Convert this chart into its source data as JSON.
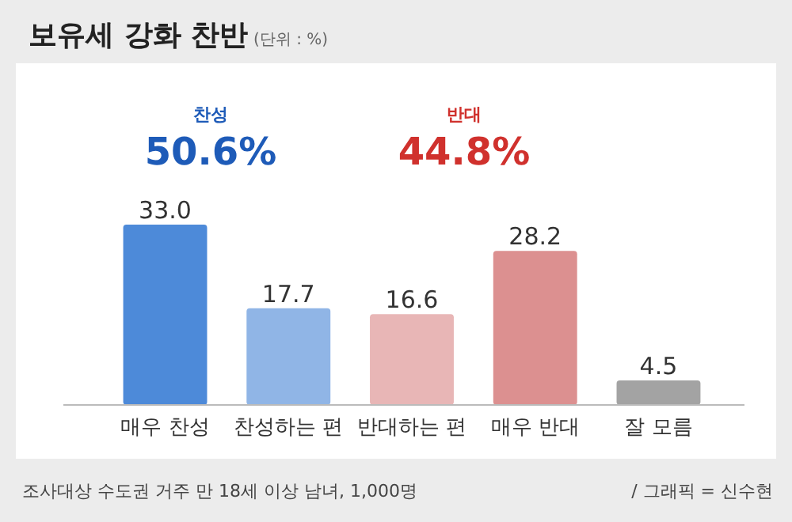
{
  "chart_data": {
    "type": "bar",
    "title": "보유세 강화 찬반",
    "subtitle": "(단위 : %)",
    "categories": [
      "매우 찬성",
      "찬성하는 편",
      "반대하는 편",
      "매우 반대",
      "잘 모름"
    ],
    "values": [
      33.0,
      17.7,
      16.6,
      28.2,
      4.5
    ],
    "colors": [
      "#4d8ad9",
      "#90b5e6",
      "#e8b6b6",
      "#dc9090",
      "#a3a3a3"
    ],
    "value_labels": [
      "33.0",
      "17.7",
      "16.6",
      "28.2",
      "4.5"
    ],
    "annotations": [
      "찬성",
      "50.6%",
      "반대",
      "44.8%",
      "조사대상 수도권 거주 만 18세 이상 남녀, 1,000명",
      "/ 그래픽 = 신수현"
    ]
  }
}
